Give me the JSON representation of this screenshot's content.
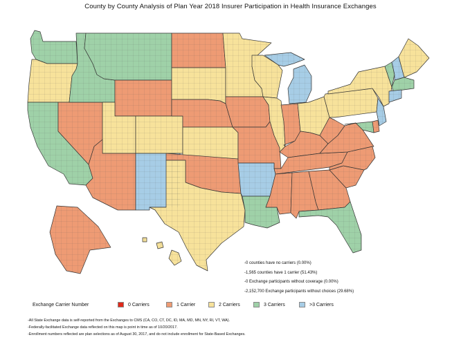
{
  "title": "County by County Analysis of Plan Year 2018 Insurer Participation in Health Insurance Exchanges",
  "stats": [
    "-0 counties have no carriers (0.00%)",
    "-1,565 counties have 1 carrier (51.43%)",
    "-0 Exchange participants without coverage (0.00%)",
    "-2,152,700 Exchange participants without choices (29.68%)"
  ],
  "legend": {
    "heading": "Exchange Carrier Number",
    "items": [
      {
        "label": "0 Carriers",
        "color": "#e0291b"
      },
      {
        "label": "1 Carrier",
        "color": "#ee9b74"
      },
      {
        "label": "2 Carriers",
        "color": "#f7e29b"
      },
      {
        "label": "3 Carriers",
        "color": "#9fd1a8"
      },
      {
        "label": ">3 Carriers",
        "color": "#a7cde6"
      }
    ]
  },
  "footnotes": [
    "-All State Exchange data is self-reported from the Exchanges to CMS (CA, CO, CT, DC, ID, MA, MD, MN, NY, RI, VT, WA).",
    "-Federally-facilitated Exchange data reflected on this map is point in time as of 10/20/2017.",
    "-Enrollment numbers reflected are plan selections as of August 30, 2017, and do not include enrollment for State-Based Exchanges."
  ],
  "regions": [
    {
      "name": "Washington",
      "carriers": "3 Carriers"
    },
    {
      "name": "Oregon",
      "carriers": "2 Carriers"
    },
    {
      "name": "California",
      "carriers": "3 Carriers"
    },
    {
      "name": "Nevada",
      "carriers": "1 Carrier"
    },
    {
      "name": "Idaho",
      "carriers": "3 Carriers"
    },
    {
      "name": "Montana",
      "carriers": "3 Carriers"
    },
    {
      "name": "Wyoming",
      "carriers": "1 Carrier"
    },
    {
      "name": "Utah",
      "carriers": "2 Carriers"
    },
    {
      "name": "Colorado",
      "carriers": "2 Carriers"
    },
    {
      "name": "Arizona",
      "carriers": "1 Carrier"
    },
    {
      "name": "New Mexico",
      "carriers": ">3 Carriers"
    },
    {
      "name": "North Dakota",
      "carriers": "1 Carrier"
    },
    {
      "name": "South Dakota",
      "carriers": "2 Carriers"
    },
    {
      "name": "Nebraska",
      "carriers": "1 Carrier"
    },
    {
      "name": "Kansas",
      "carriers": "2 Carriers"
    },
    {
      "name": "Oklahoma",
      "carriers": "1 Carrier"
    },
    {
      "name": "Texas",
      "carriers": "2 Carriers"
    },
    {
      "name": "Minnesota",
      "carriers": "2 Carriers"
    },
    {
      "name": "Iowa",
      "carriers": "1 Carrier"
    },
    {
      "name": "Missouri",
      "carriers": "1 Carrier"
    },
    {
      "name": "Arkansas",
      "carriers": ">3 Carriers"
    },
    {
      "name": "Louisiana",
      "carriers": "3 Carriers"
    },
    {
      "name": "Wisconsin",
      "carriers": "2 Carriers"
    },
    {
      "name": "Illinois",
      "carriers": "2 Carriers"
    },
    {
      "name": "Michigan",
      "carriers": ">3 Carriers"
    },
    {
      "name": "Indiana",
      "carriers": "1 Carrier"
    },
    {
      "name": "Ohio",
      "carriers": "2 Carriers"
    },
    {
      "name": "Kentucky",
      "carriers": "1 Carrier"
    },
    {
      "name": "Tennessee",
      "carriers": "1 Carrier"
    },
    {
      "name": "Mississippi",
      "carriers": "1 Carrier"
    },
    {
      "name": "Alabama",
      "carriers": "1 Carrier"
    },
    {
      "name": "Georgia",
      "carriers": "1 Carrier"
    },
    {
      "name": "Florida",
      "carriers": "3 Carriers"
    },
    {
      "name": "South Carolina",
      "carriers": "1 Carrier"
    },
    {
      "name": "North Carolina",
      "carriers": "1 Carrier"
    },
    {
      "name": "Virginia",
      "carriers": "1 Carrier"
    },
    {
      "name": "West Virginia",
      "carriers": "1 Carrier"
    },
    {
      "name": "Pennsylvania",
      "carriers": "2 Carriers"
    },
    {
      "name": "New York",
      "carriers": "2 Carriers"
    },
    {
      "name": "Vermont",
      "carriers": "3 Carriers"
    },
    {
      "name": "New Hampshire",
      "carriers": ">3 Carriers"
    },
    {
      "name": "Maine",
      "carriers": "2 Carriers"
    },
    {
      "name": "Massachusetts",
      "carriers": "3 Carriers"
    },
    {
      "name": "Connecticut",
      "carriers": ">3 Carriers"
    },
    {
      "name": "New Jersey",
      "carriers": ">3 Carriers"
    },
    {
      "name": "Delaware",
      "carriers": "1 Carrier"
    },
    {
      "name": "Maryland",
      "carriers": "3 Carriers"
    },
    {
      "name": "Alaska",
      "carriers": "1 Carrier"
    },
    {
      "name": "Hawaii",
      "carriers": "2 Carriers"
    }
  ]
}
